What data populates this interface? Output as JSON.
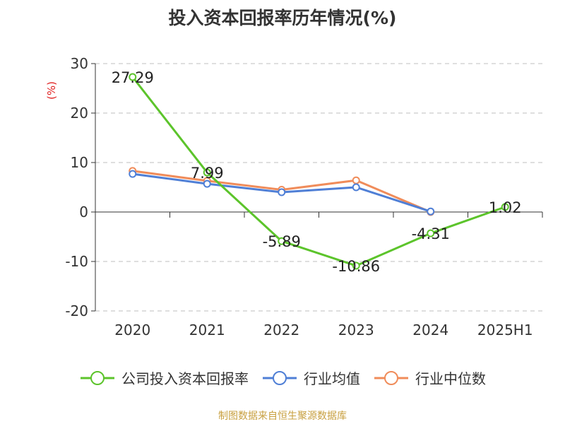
{
  "chart_data": {
    "type": "line",
    "title": "投入资本回报率历年情况(%)",
    "ylabel": "(%)",
    "xlabel": "",
    "categories": [
      "2020",
      "2021",
      "2022",
      "2023",
      "2024",
      "2025H1"
    ],
    "ylim": [
      -20,
      30
    ],
    "yticks": [
      30,
      20,
      10,
      0,
      -10,
      -20
    ],
    "grid": true,
    "legend_position": "bottom",
    "series": [
      {
        "name": "公司投入资本回报率",
        "color": "#5cc42b",
        "values": [
          27.29,
          7.99,
          -5.89,
          -10.86,
          -4.31,
          1.02
        ],
        "labels": [
          "27.29",
          "7.99",
          "-5.89",
          "-10.86",
          "-4.31",
          "1.02"
        ]
      },
      {
        "name": "行业均值",
        "color": "#4f7fd6",
        "values": [
          7.7,
          5.7,
          4.0,
          5.0,
          0.1,
          null
        ]
      },
      {
        "name": "行业中位数",
        "color": "#f08c5a",
        "values": [
          8.3,
          6.3,
          4.5,
          6.4,
          0.0,
          null
        ]
      }
    ]
  },
  "footer": {
    "source": "制图数据来自恒生聚源数据库"
  }
}
